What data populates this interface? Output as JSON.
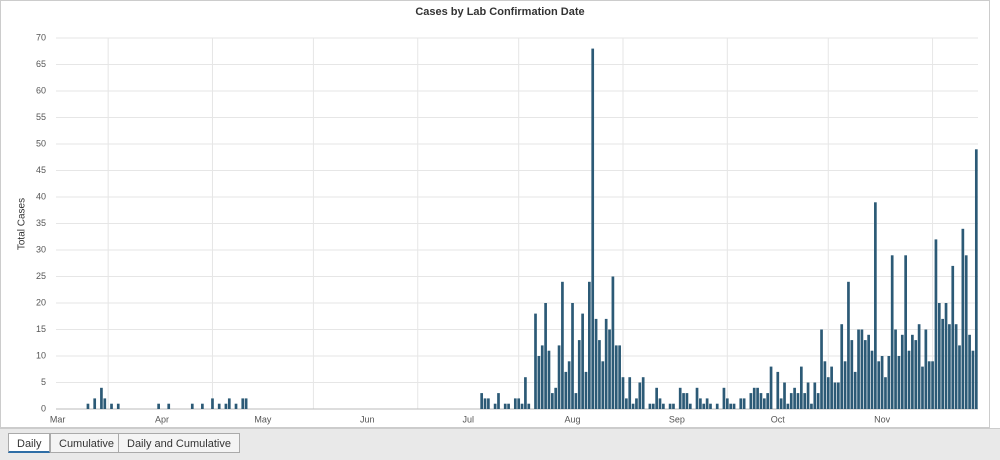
{
  "chart_data": {
    "type": "bar",
    "title": "Cases by Lab Confirmation Date",
    "y_label": "Total Cases",
    "categories": [
      "Mar",
      null,
      null,
      null,
      null,
      null,
      null,
      null,
      null,
      null,
      null,
      null,
      null,
      null,
      null,
      null,
      null,
      null,
      null,
      null,
      null,
      null,
      null,
      null,
      null,
      null,
      null,
      null,
      null,
      null,
      null,
      "Apr",
      null,
      null,
      null,
      null,
      null,
      null,
      null,
      null,
      null,
      null,
      null,
      null,
      null,
      null,
      null,
      null,
      null,
      null,
      null,
      null,
      null,
      null,
      null,
      null,
      null,
      null,
      null,
      null,
      null,
      "May",
      null,
      null,
      null,
      null,
      null,
      null,
      null,
      null,
      null,
      null,
      null,
      null,
      null,
      null,
      null,
      null,
      null,
      null,
      null,
      null,
      null,
      null,
      null,
      null,
      null,
      null,
      null,
      null,
      null,
      null,
      "Jun",
      null,
      null,
      null,
      null,
      null,
      null,
      null,
      null,
      null,
      null,
      null,
      null,
      null,
      null,
      null,
      null,
      null,
      null,
      null,
      null,
      null,
      null,
      null,
      null,
      null,
      null,
      null,
      null,
      null,
      "Jul",
      null,
      null,
      null,
      null,
      null,
      null,
      null,
      null,
      null,
      null,
      null,
      null,
      null,
      null,
      null,
      null,
      null,
      null,
      null,
      null,
      null,
      null,
      null,
      null,
      null,
      null,
      null,
      null,
      null,
      null,
      "Aug",
      null,
      null,
      null,
      null,
      null,
      null,
      null,
      null,
      null,
      null,
      null,
      null,
      null,
      null,
      null,
      null,
      null,
      null,
      null,
      null,
      null,
      null,
      null,
      null,
      null,
      null,
      null,
      null,
      null,
      null,
      "Sep",
      null,
      null,
      null,
      null,
      null,
      null,
      null,
      null,
      null,
      null,
      null,
      null,
      null,
      null,
      null,
      null,
      null,
      null,
      null,
      null,
      null,
      null,
      null,
      null,
      null,
      null,
      null,
      null,
      null,
      "Oct",
      null,
      null,
      null,
      null,
      null,
      null,
      null,
      null,
      null,
      null,
      null,
      null,
      null,
      null,
      null,
      null,
      null,
      null,
      null,
      null,
      null,
      null,
      null,
      null,
      null,
      null,
      null,
      null,
      null,
      null,
      "Nov",
      null,
      null,
      null,
      null,
      null,
      null,
      null,
      null,
      null,
      null,
      null,
      null,
      null,
      null,
      null,
      null,
      null,
      null,
      null,
      null,
      null,
      null,
      null,
      null,
      null,
      null,
      null,
      null
    ],
    "values": [
      0,
      0,
      0,
      0,
      0,
      0,
      0,
      0,
      0,
      1,
      0,
      2,
      0,
      4,
      2,
      0,
      1,
      0,
      1,
      0,
      0,
      0,
      0,
      0,
      0,
      0,
      0,
      0,
      0,
      0,
      1,
      0,
      0,
      1,
      0,
      0,
      0,
      0,
      0,
      0,
      1,
      0,
      0,
      1,
      0,
      0,
      2,
      0,
      1,
      0,
      1,
      2,
      0,
      1,
      0,
      2,
      2,
      0,
      0,
      0,
      0,
      0,
      0,
      0,
      0,
      0,
      0,
      0,
      0,
      0,
      0,
      0,
      0,
      0,
      0,
      0,
      0,
      0,
      0,
      0,
      0,
      0,
      0,
      0,
      0,
      0,
      0,
      0,
      0,
      0,
      0,
      0,
      0,
      0,
      0,
      0,
      0,
      0,
      0,
      0,
      0,
      0,
      0,
      0,
      0,
      0,
      0,
      0,
      0,
      0,
      0,
      0,
      0,
      0,
      0,
      0,
      0,
      0,
      0,
      0,
      0,
      0,
      0,
      0,
      0,
      0,
      3,
      2,
      2,
      0,
      1,
      3,
      0,
      1,
      1,
      0,
      2,
      2,
      1,
      6,
      1,
      0,
      18,
      10,
      12,
      20,
      11,
      3,
      4,
      12,
      24,
      7,
      9,
      20,
      3,
      13,
      18,
      7,
      24,
      68,
      17,
      13,
      9,
      17,
      15,
      25,
      12,
      12,
      6,
      2,
      6,
      1,
      2,
      5,
      6,
      0,
      1,
      1,
      4,
      2,
      1,
      0,
      1,
      1,
      0,
      4,
      3,
      3,
      1,
      0,
      4,
      2,
      1,
      2,
      1,
      0,
      1,
      0,
      4,
      2,
      1,
      1,
      0,
      2,
      2,
      0,
      3,
      4,
      4,
      3,
      2,
      3,
      8,
      0,
      7,
      2,
      5,
      1,
      3,
      4,
      3,
      8,
      3,
      5,
      1,
      5,
      3,
      15,
      9,
      6,
      8,
      5,
      5,
      16,
      9,
      24,
      13,
      7,
      15,
      15,
      13,
      14,
      11,
      39,
      9,
      10,
      6,
      10,
      29,
      15,
      10,
      14,
      29,
      11,
      14,
      13,
      16,
      8,
      15,
      9,
      9,
      32,
      20,
      17,
      20,
      16,
      27,
      16,
      12,
      34,
      29,
      14,
      11,
      49
    ],
    "color": "#2c5a76",
    "ylim": [
      0,
      70
    ],
    "yticks": [
      0,
      5,
      10,
      15,
      20,
      25,
      30,
      35,
      40,
      45,
      50,
      55,
      60,
      65,
      70
    ],
    "grid": true
  },
  "tabs": [
    "Daily",
    "Cumulative",
    "Daily and Cumulative"
  ]
}
